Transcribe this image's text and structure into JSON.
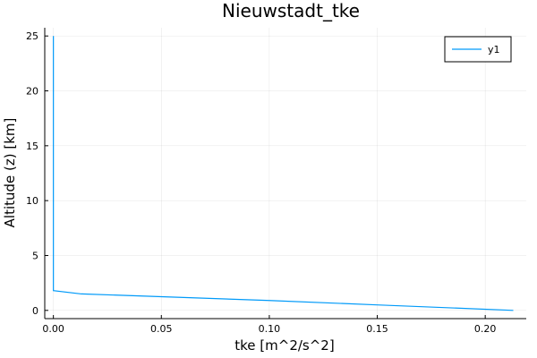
{
  "chart_data": {
    "type": "line",
    "title": "Nieuwstadt_tke",
    "xlabel": "tke [m^2/s^2]",
    "ylabel": "Altitude (z) [km]",
    "xlim": [
      -0.004,
      0.219
    ],
    "ylim": [
      -0.75,
      25.75
    ],
    "xticks": [
      0.0,
      0.05,
      0.1,
      0.15,
      0.2
    ],
    "xtick_labels": [
      "0.00",
      "0.05",
      "0.10",
      "0.15",
      "0.20"
    ],
    "yticks": [
      0,
      5,
      10,
      15,
      20,
      25
    ],
    "ytick_labels": [
      "0",
      "5",
      "10",
      "15",
      "20",
      "25"
    ],
    "grid": true,
    "legend": "top-right",
    "series": [
      {
        "name": "y1",
        "color": "#009af9",
        "points": [
          {
            "x": 0.213,
            "y": 0.0
          },
          {
            "x": 0.15,
            "y": 0.5
          },
          {
            "x": 0.1,
            "y": 0.9
          },
          {
            "x": 0.05,
            "y": 1.25
          },
          {
            "x": 0.013,
            "y": 1.5
          },
          {
            "x": 0.0,
            "y": 1.8
          },
          {
            "x": 0.0,
            "y": 2.5
          },
          {
            "x": 0.0,
            "y": 25.0
          }
        ]
      }
    ]
  }
}
